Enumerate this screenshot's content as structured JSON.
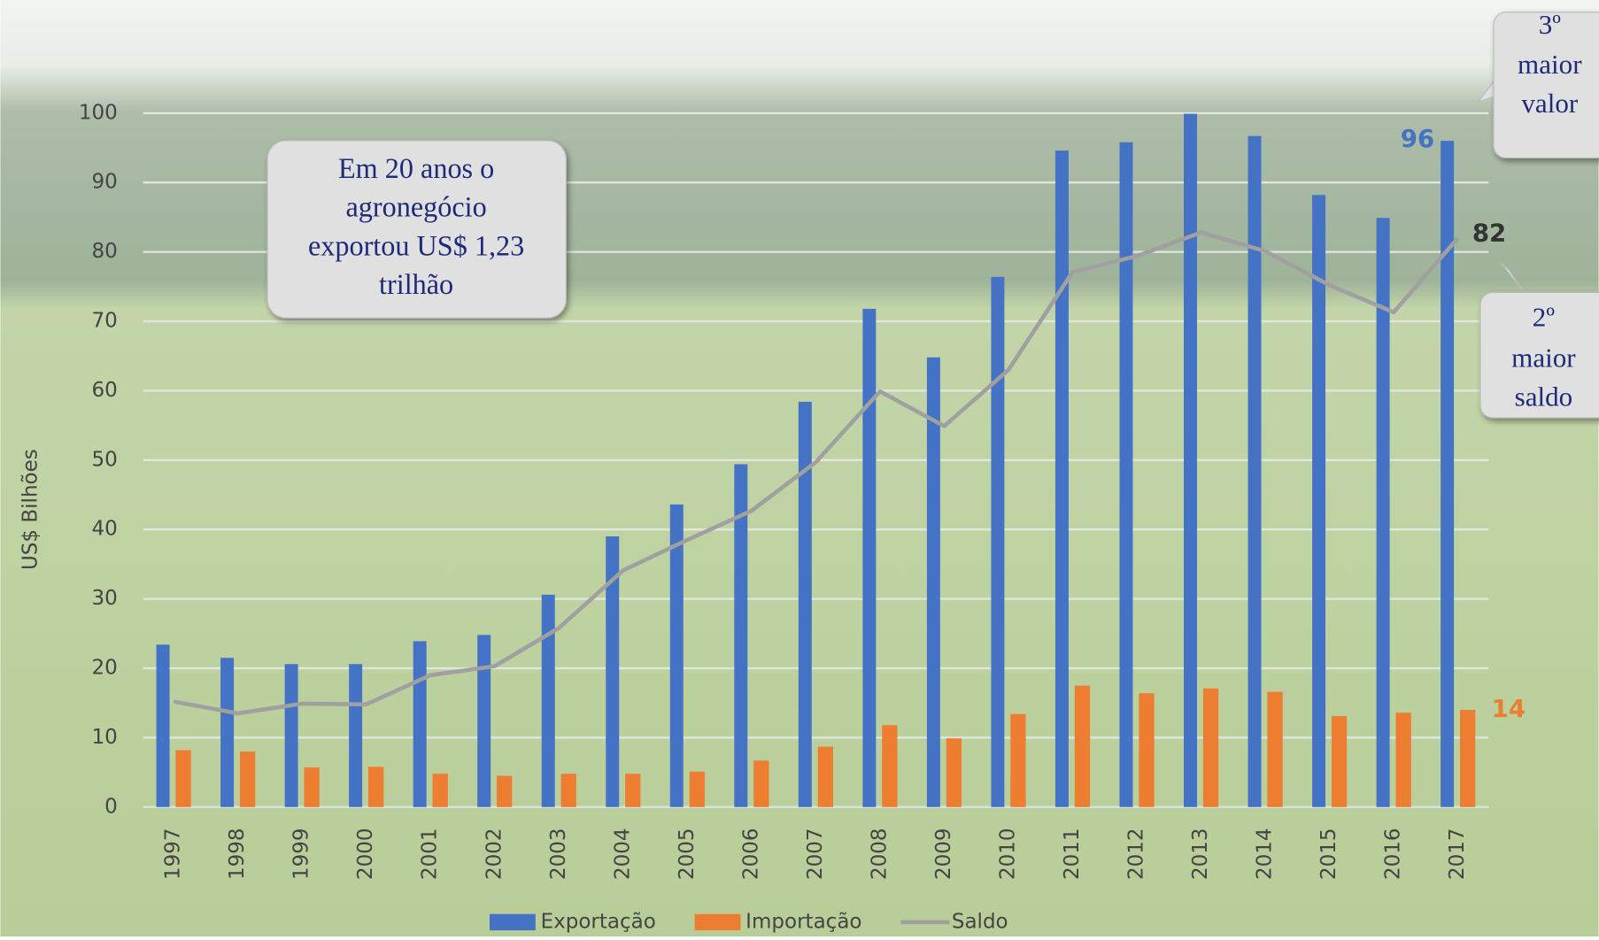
{
  "chart_data": {
    "type": "bar",
    "y_label": "US$ Bilhões",
    "categories": [
      "1997",
      "1998",
      "1999",
      "2000",
      "2001",
      "2002",
      "2003",
      "2004",
      "2005",
      "2006",
      "2007",
      "2008",
      "2009",
      "2010",
      "2011",
      "2012",
      "2013",
      "2014",
      "2015",
      "2016",
      "2017"
    ],
    "series": [
      {
        "name": "Exportação",
        "type": "bar",
        "color": "#4472c4",
        "values": [
          23.4,
          21.5,
          20.6,
          20.6,
          23.9,
          24.8,
          30.6,
          39.0,
          43.6,
          49.4,
          58.4,
          71.8,
          64.8,
          76.4,
          94.6,
          95.8,
          99.9,
          96.7,
          88.2,
          84.9,
          96
        ],
        "value_labels": [
          null,
          null,
          null,
          null,
          null,
          null,
          null,
          null,
          null,
          null,
          null,
          null,
          null,
          null,
          null,
          null,
          null,
          null,
          null,
          null,
          "96"
        ]
      },
      {
        "name": "Importação",
        "type": "bar",
        "color": "#ed7d31",
        "values": [
          8.2,
          8.0,
          5.7,
          5.8,
          4.8,
          4.5,
          4.8,
          4.8,
          5.1,
          6.7,
          8.7,
          11.8,
          9.9,
          13.4,
          17.5,
          16.4,
          17.1,
          16.6,
          13.1,
          13.6,
          14
        ],
        "value_labels": [
          null,
          null,
          null,
          null,
          null,
          null,
          null,
          null,
          null,
          null,
          null,
          null,
          null,
          null,
          null,
          null,
          null,
          null,
          null,
          null,
          "14"
        ]
      },
      {
        "name": "Saldo",
        "type": "line",
        "color": "#a0a0a0",
        "values": [
          15.2,
          13.5,
          14.9,
          14.8,
          19.0,
          20.3,
          25.8,
          34.1,
          38.5,
          42.7,
          49.7,
          59.9,
          54.9,
          63.0,
          77.1,
          79.4,
          82.8,
          80.1,
          75.2,
          71.3,
          82
        ],
        "value_labels": [
          null,
          null,
          null,
          null,
          null,
          null,
          null,
          null,
          null,
          null,
          null,
          null,
          null,
          null,
          null,
          null,
          null,
          null,
          null,
          null,
          "82"
        ]
      }
    ],
    "ylim": [
      0,
      100
    ],
    "yticks": [
      0,
      10,
      20,
      30,
      40,
      50,
      60,
      70,
      80,
      90,
      100
    ],
    "grid": true,
    "legend": "bottom",
    "callouts": [
      {
        "lines": [
          "Em 20 anos o",
          "agronegócio",
          "exportou US$ 1,23",
          "trilhão"
        ]
      },
      {
        "lines": [
          "3º",
          "maior",
          "valor"
        ]
      },
      {
        "lines": [
          "2º",
          "maior",
          "saldo"
        ]
      }
    ]
  }
}
